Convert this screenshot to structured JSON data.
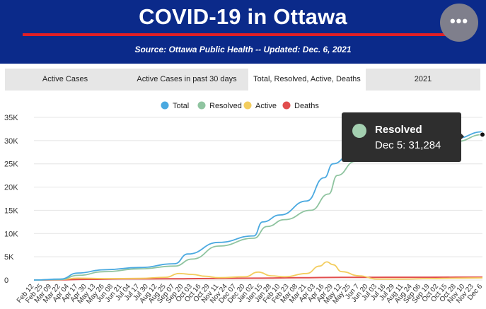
{
  "header": {
    "title": "COVID-19 in Ottawa",
    "subtitle": "Source:  Ottawa Public Health -- Updated:  Dec. 6, 2021",
    "menu_icon": "more-horizontal-icon",
    "background_color": "#0b2a8a",
    "accent_color": "#e01f26"
  },
  "tabs": [
    {
      "label": "Active Cases",
      "active": false
    },
    {
      "label": "Active Cases in past 30 days",
      "active": false
    },
    {
      "label": "Total, Resolved, Active, Deaths",
      "active": true
    },
    {
      "label": "2021",
      "active": false
    }
  ],
  "tooltip": {
    "series": "Resolved",
    "text": "Dec 5: 31,284",
    "color": "#a3cfb0"
  },
  "chart_data": {
    "type": "line",
    "ylim": [
      0,
      35000
    ],
    "yticks": [
      0,
      5000,
      10000,
      15000,
      20000,
      25000,
      30000,
      35000
    ],
    "ytick_labels": [
      "0",
      "5K",
      "10K",
      "15K",
      "20K",
      "25K",
      "30K",
      "35K"
    ],
    "xtick_labels": [
      "Feb 12",
      "Feb 25",
      "Mar 09",
      "Mar 22",
      "Apr 04",
      "Apr 17",
      "Apr 30",
      "May 13",
      "May 26",
      "Jun 08",
      "Jun 21",
      "Jul 04",
      "Jul 17",
      "Jul 30",
      "Aug 12",
      "Aug 25",
      "Sep 07",
      "Sep 20",
      "Oct 03",
      "Oct 16",
      "Oct 29",
      "Nov 11",
      "Nov 24",
      "Dec 07",
      "Dec 20",
      "Jan 02",
      "Jan 15",
      "Jan 28",
      "Feb 10",
      "Feb 23",
      "Mar 08",
      "Mar 21",
      "Apr 03",
      "Apr 16",
      "Apr 29",
      "May 12",
      "May 25",
      "Jun 7",
      "Jun 20",
      "Jul 03",
      "Jul 16",
      "Jul 29",
      "Aug 11",
      "Aug 24",
      "Sep 06",
      "Sep 19",
      "Oct 02",
      "Oct 15",
      "Oct 28",
      "Nov 10",
      "Nov 23",
      "Dec 6"
    ],
    "grid": "horizontal",
    "legend": "top",
    "x_index": [
      0,
      3,
      4,
      6,
      9,
      14,
      21,
      31,
      35,
      40,
      45,
      48,
      51
    ],
    "series": [
      {
        "name": "Total",
        "color": "#4aa9e0",
        "x": [
          0,
          3,
          5,
          8,
          12,
          16,
          17.5,
          21,
          25,
          26,
          28,
          31,
          33,
          34,
          36,
          38,
          45,
          48,
          51
        ],
        "values": [
          0,
          200,
          1500,
          2200,
          2700,
          3500,
          5600,
          8100,
          9500,
          12500,
          14000,
          17000,
          22000,
          25000,
          27000,
          28000,
          29000,
          30500,
          31900
        ]
      },
      {
        "name": "Resolved",
        "color": "#8fc4a0",
        "x": [
          0,
          3,
          5,
          8,
          12,
          16,
          18,
          21,
          25,
          26.5,
          28.5,
          31.5,
          33.5,
          34.5,
          36.5,
          38.5,
          45,
          48,
          51
        ],
        "values": [
          0,
          100,
          1000,
          1800,
          2400,
          3000,
          4500,
          7300,
          9000,
          11500,
          13000,
          15000,
          18500,
          22500,
          25500,
          27000,
          28500,
          29800,
          31284
        ]
      },
      {
        "name": "Active",
        "color": "#f3cd5e",
        "x": [
          0,
          3,
          5,
          8,
          12,
          15,
          16.5,
          18,
          19.5,
          21,
          24,
          25.5,
          27,
          28.5,
          31,
          32.5,
          33.3,
          34,
          35,
          37,
          39,
          42,
          45,
          48,
          51
        ],
        "values": [
          0,
          100,
          400,
          300,
          350,
          600,
          1400,
          1200,
          800,
          500,
          700,
          1700,
          900,
          700,
          1400,
          3000,
          3900,
          3300,
          1800,
          900,
          200,
          200,
          300,
          400,
          450
        ]
      },
      {
        "name": "Deaths",
        "color": "#e14d4d",
        "x": [
          0,
          3,
          6,
          10,
          15,
          20,
          25,
          30,
          35,
          40,
          45,
          51
        ],
        "values": [
          0,
          50,
          150,
          240,
          260,
          320,
          400,
          480,
          560,
          590,
          600,
          615
        ]
      }
    ]
  }
}
